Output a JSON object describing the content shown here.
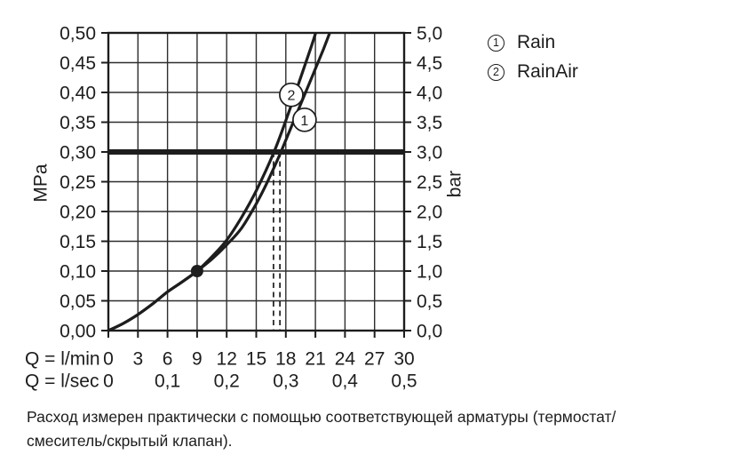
{
  "window": {
    "background": "#ffffff"
  },
  "legend": {
    "items": [
      {
        "symbol": "1",
        "label": "Rain"
      },
      {
        "symbol": "2",
        "label": "RainAir"
      }
    ]
  },
  "caption": {
    "lines": [
      "Расход измерен практически с помощью соответствующей арматуры (термостат/",
      "смеситель/скрытый клапан)."
    ]
  },
  "chart_data": {
    "type": "line",
    "title": "",
    "grid": true,
    "legend_position": "top-right",
    "x_axis": {
      "range": [
        0,
        30
      ],
      "grid_step": 3,
      "rows": [
        {
          "label": "Q = l/min",
          "ticks": [
            0,
            3,
            6,
            9,
            12,
            15,
            18,
            21,
            24,
            27,
            30
          ],
          "tick_labels": [
            "0",
            "3",
            "6",
            "9",
            "12",
            "15",
            "18",
            "21",
            "24",
            "27",
            "30"
          ]
        },
        {
          "label": "Q = l/sec",
          "ticks": [
            0,
            6,
            12,
            18,
            24,
            30
          ],
          "tick_labels": [
            "0",
            "0,1",
            "0,2",
            "0,3",
            "0,4",
            "0,5"
          ]
        }
      ]
    },
    "y_axis_left": {
      "label": "MPa",
      "range": [
        0,
        0.5
      ],
      "step": 0.05,
      "tick_labels": [
        "0,00",
        "0,05",
        "0,10",
        "0,15",
        "0,20",
        "0,25",
        "0,30",
        "0,35",
        "0,40",
        "0,45",
        "0,50"
      ]
    },
    "y_axis_right": {
      "label": "bar",
      "range": [
        0,
        5
      ],
      "step": 0.5,
      "tick_labels": [
        "0,0",
        "0,5",
        "1,0",
        "1,5",
        "2,0",
        "2,5",
        "3,0",
        "3,5",
        "4,0",
        "4,5",
        "5,0"
      ]
    },
    "series": [
      {
        "name": "Rain",
        "marker": "1",
        "points": [
          [
            0,
            0
          ],
          [
            1.5,
            0.012
          ],
          [
            3,
            0.027
          ],
          [
            4.5,
            0.045
          ],
          [
            6,
            0.065
          ],
          [
            7.5,
            0.082
          ],
          [
            9,
            0.1
          ],
          [
            10.5,
            0.12
          ],
          [
            12,
            0.144
          ],
          [
            13.5,
            0.172
          ],
          [
            15,
            0.213
          ],
          [
            16.2,
            0.252
          ],
          [
            17.5,
            0.3
          ],
          [
            19,
            0.36
          ],
          [
            20.5,
            0.42
          ],
          [
            21.8,
            0.472
          ],
          [
            22.9,
            0.52
          ]
        ],
        "label_pos": [
          19.9,
          0.354
        ]
      },
      {
        "name": "RainAir",
        "marker": "2",
        "points": [
          [
            0,
            0
          ],
          [
            1.5,
            0.012
          ],
          [
            3,
            0.027
          ],
          [
            4.5,
            0.045
          ],
          [
            6,
            0.065
          ],
          [
            7.5,
            0.082
          ],
          [
            9,
            0.1
          ],
          [
            10.5,
            0.124
          ],
          [
            12,
            0.152
          ],
          [
            13.5,
            0.19
          ],
          [
            15,
            0.235
          ],
          [
            16.8,
            0.3
          ],
          [
            18.2,
            0.362
          ],
          [
            19.5,
            0.425
          ],
          [
            20.6,
            0.478
          ],
          [
            21.4,
            0.52
          ]
        ],
        "label_pos": [
          18.55,
          0.396
        ]
      }
    ],
    "annotations": {
      "pressure_line": {
        "y": 0.3
      },
      "dashed_vlines_x": [
        16.75,
        17.4
      ],
      "dot": {
        "x": 9,
        "y": 0.1
      }
    },
    "colors": {
      "ink": "#1d1d1d",
      "grid": "#2e2e2e",
      "background": "#ffffff"
    }
  }
}
